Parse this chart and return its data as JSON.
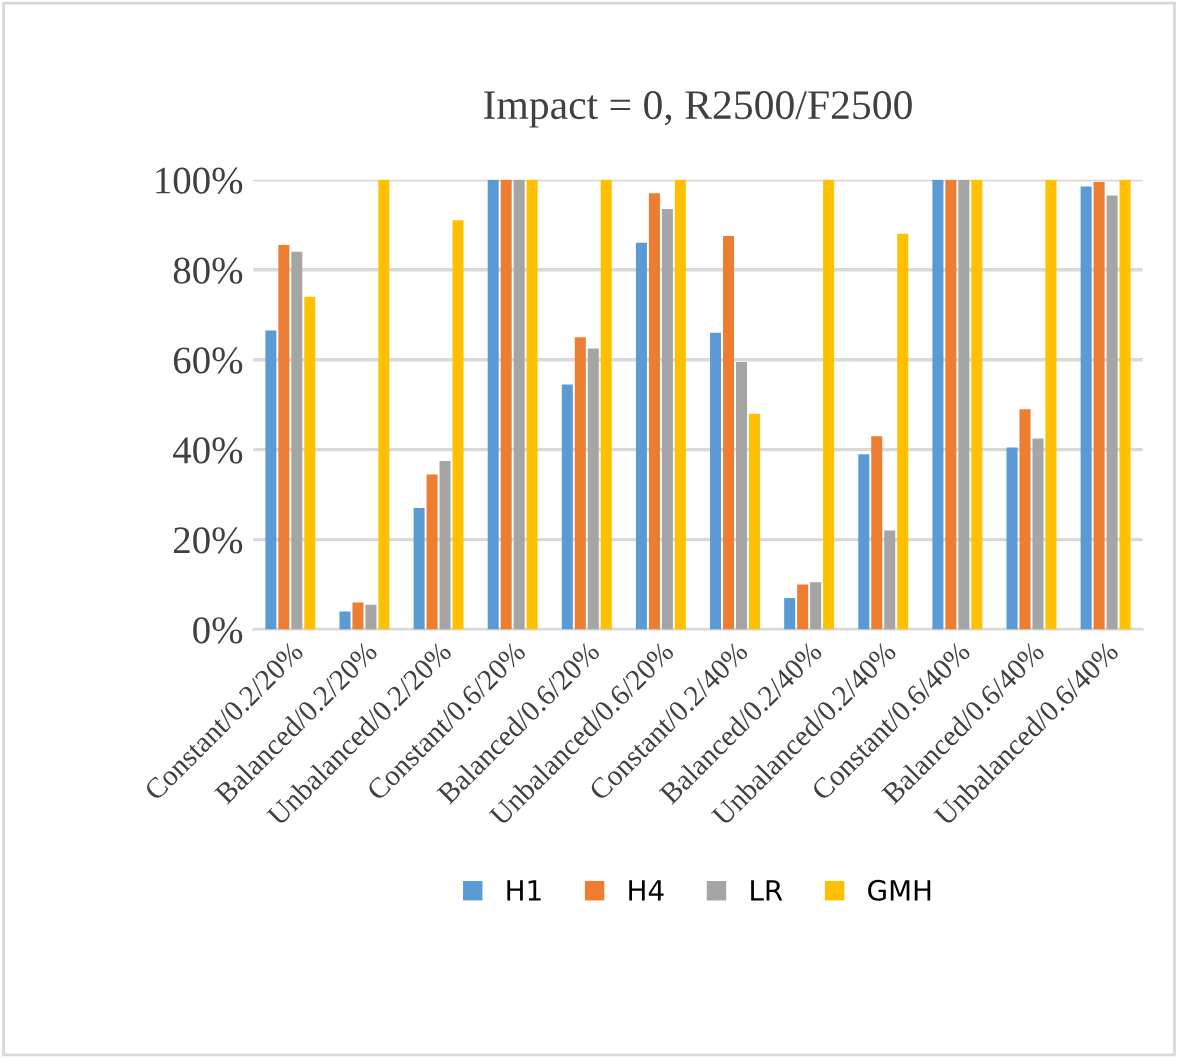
{
  "chart_data": {
    "type": "bar",
    "title": "Impact = 0, R2500/F2500",
    "categories": [
      "Constant/0.2/20%",
      "Balanced/0.2/20%",
      "Unbalanced/0.2/20%",
      "Constant/0.6/20%",
      "Balanced/0.6/20%",
      "Unbalanced/0.6/20%",
      "Constant/0.2/40%",
      "Balanced/0.2/40%",
      "Unbalanced/0.2/40%",
      "Constant/0.6/40%",
      "Balanced/0.6/40%",
      "Unbalanced/0.6/40%"
    ],
    "series": [
      {
        "name": "H1",
        "color": "#5b9bd5",
        "values": [
          66.5,
          4,
          27,
          100,
          54.5,
          86,
          66,
          7,
          39,
          100,
          40.5,
          98.5
        ]
      },
      {
        "name": "H4",
        "color": "#ed7d31",
        "values": [
          85.5,
          6,
          34.5,
          100,
          65,
          97,
          87.5,
          10,
          43,
          100,
          49,
          99.5
        ]
      },
      {
        "name": "LR",
        "color": "#a5a5a5",
        "values": [
          84,
          5.5,
          37.5,
          100,
          62.5,
          93.5,
          59.5,
          10.5,
          22,
          100,
          42.5,
          96.5
        ]
      },
      {
        "name": "GMH",
        "color": "#ffc000",
        "values": [
          74,
          100,
          91,
          100,
          100,
          100,
          48,
          100,
          88,
          100,
          100,
          100
        ]
      }
    ],
    "ylim": [
      0,
      100
    ],
    "yticks": [
      {
        "value": 0,
        "label": "0%"
      },
      {
        "value": 20,
        "label": "20%"
      },
      {
        "value": 40,
        "label": "40%"
      },
      {
        "value": 60,
        "label": "60%"
      },
      {
        "value": 80,
        "label": "80%"
      },
      {
        "value": 100,
        "label": "100%"
      }
    ],
    "grid": "y",
    "legend": "bottom"
  }
}
